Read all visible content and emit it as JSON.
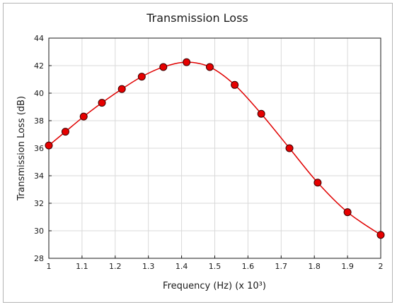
{
  "chart_data": {
    "type": "line",
    "title": "Transmission Loss",
    "xlabel": "Frequency (Hz) (x 10³)",
    "ylabel": "Transmission Loss (dB)",
    "xlim": [
      1,
      2
    ],
    "ylim": [
      28,
      44
    ],
    "xticks": [
      "1",
      "1.1",
      "1.2",
      "1.3",
      "1.4",
      "1.5",
      "1.6",
      "1.7",
      "1.8",
      "1.9",
      "2"
    ],
    "yticks": [
      "28",
      "30",
      "32",
      "34",
      "36",
      "38",
      "40",
      "42",
      "44"
    ],
    "grid": true,
    "series": [
      {
        "color": "#e00000",
        "marker_color": "#e60000",
        "x": [
          1.0,
          1.05,
          1.105,
          1.16,
          1.22,
          1.28,
          1.345,
          1.415,
          1.485,
          1.56,
          1.64,
          1.725,
          1.81,
          1.9,
          2.0
        ],
        "y": [
          36.2,
          37.2,
          38.3,
          39.3,
          40.3,
          41.2,
          41.9,
          42.25,
          41.9,
          40.6,
          38.5,
          36.0,
          33.5,
          31.35,
          29.7
        ]
      }
    ]
  }
}
